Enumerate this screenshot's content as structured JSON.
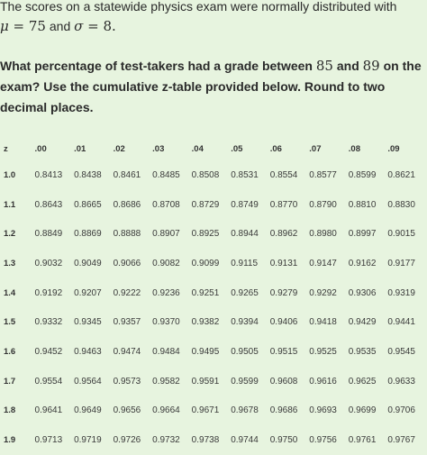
{
  "intro": {
    "text_before": "The scores on a statewide physics exam were normally distributed with",
    "mu_symbol": "μ",
    "equals_1": "=",
    "mu_value": "75",
    "and_text": "and",
    "sigma_symbol": "σ",
    "equals_2": "=",
    "sigma_value": "8."
  },
  "question": {
    "part1": "What percentage of test-takers had a grade between",
    "low": "85",
    "and_text": "and",
    "high": "89",
    "part2": "on the exam? Use the cumulative z-table provided below. Round to two decimal places."
  },
  "ztable": {
    "corner": "z",
    "columns": [
      ".00",
      ".01",
      ".02",
      ".03",
      ".04",
      ".05",
      ".06",
      ".07",
      ".08",
      ".09"
    ],
    "rows": [
      {
        "z": "1.0",
        "values": [
          "0.8413",
          "0.8438",
          "0.8461",
          "0.8485",
          "0.8508",
          "0.8531",
          "0.8554",
          "0.8577",
          "0.8599",
          "0.8621"
        ]
      },
      {
        "z": "1.1",
        "values": [
          "0.8643",
          "0.8665",
          "0.8686",
          "0.8708",
          "0.8729",
          "0.8749",
          "0.8770",
          "0.8790",
          "0.8810",
          "0.8830"
        ]
      },
      {
        "z": "1.2",
        "values": [
          "0.8849",
          "0.8869",
          "0.8888",
          "0.8907",
          "0.8925",
          "0.8944",
          "0.8962",
          "0.8980",
          "0.8997",
          "0.9015"
        ]
      },
      {
        "z": "1.3",
        "values": [
          "0.9032",
          "0.9049",
          "0.9066",
          "0.9082",
          "0.9099",
          "0.9115",
          "0.9131",
          "0.9147",
          "0.9162",
          "0.9177"
        ]
      },
      {
        "z": "1.4",
        "values": [
          "0.9192",
          "0.9207",
          "0.9222",
          "0.9236",
          "0.9251",
          "0.9265",
          "0.9279",
          "0.9292",
          "0.9306",
          "0.9319"
        ]
      },
      {
        "z": "1.5",
        "values": [
          "0.9332",
          "0.9345",
          "0.9357",
          "0.9370",
          "0.9382",
          "0.9394",
          "0.9406",
          "0.9418",
          "0.9429",
          "0.9441"
        ]
      },
      {
        "z": "1.6",
        "values": [
          "0.9452",
          "0.9463",
          "0.9474",
          "0.9484",
          "0.9495",
          "0.9505",
          "0.9515",
          "0.9525",
          "0.9535",
          "0.9545"
        ]
      },
      {
        "z": "1.7",
        "values": [
          "0.9554",
          "0.9564",
          "0.9573",
          "0.9582",
          "0.9591",
          "0.9599",
          "0.9608",
          "0.9616",
          "0.9625",
          "0.9633"
        ]
      },
      {
        "z": "1.8",
        "values": [
          "0.9641",
          "0.9649",
          "0.9656",
          "0.9664",
          "0.9671",
          "0.9678",
          "0.9686",
          "0.9693",
          "0.9699",
          "0.9706"
        ]
      },
      {
        "z": "1.9",
        "values": [
          "0.9713",
          "0.9719",
          "0.9726",
          "0.9732",
          "0.9738",
          "0.9744",
          "0.9750",
          "0.9756",
          "0.9761",
          "0.9767"
        ]
      }
    ]
  }
}
